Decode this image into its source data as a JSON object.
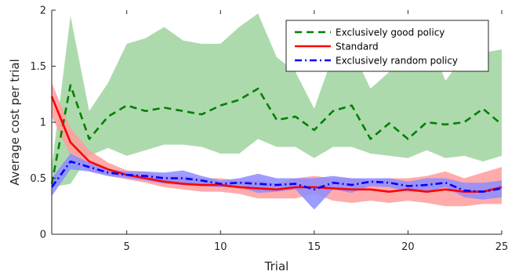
{
  "chart_data": {
    "type": "line",
    "xlabel": "Trial",
    "ylabel": "Average cost per trial",
    "xlim": [
      1,
      25
    ],
    "ylim": [
      0,
      2
    ],
    "xticks": [
      5,
      10,
      15,
      20,
      25
    ],
    "yticks": [
      0,
      0.5,
      1,
      1.5,
      2
    ],
    "ytick_labels": [
      "0",
      "0.5",
      "1",
      "1.5",
      "2"
    ],
    "grid": false,
    "legend_position": "top-right",
    "x": [
      1,
      2,
      3,
      4,
      5,
      6,
      7,
      8,
      9,
      10,
      11,
      12,
      13,
      14,
      15,
      16,
      17,
      18,
      19,
      20,
      21,
      22,
      23,
      24,
      25
    ],
    "series": [
      {
        "name": "Exclusively good policy",
        "color": "#008000",
        "band_color": "#9fd39f",
        "line_style": "dashed",
        "values": [
          0.45,
          1.33,
          0.85,
          1.05,
          1.15,
          1.1,
          1.13,
          1.1,
          1.07,
          1.15,
          1.2,
          1.3,
          1.02,
          1.05,
          0.93,
          1.1,
          1.15,
          0.85,
          0.99,
          0.85,
          1.0,
          0.98,
          1.0,
          1.12,
          0.98
        ],
        "upper": [
          0.6,
          1.95,
          1.1,
          1.35,
          1.7,
          1.75,
          1.85,
          1.73,
          1.7,
          1.7,
          1.85,
          1.97,
          1.58,
          1.45,
          1.12,
          1.6,
          1.65,
          1.3,
          1.45,
          1.65,
          1.8,
          1.37,
          1.6,
          1.62,
          1.65
        ],
        "lower": [
          0.42,
          0.45,
          0.7,
          0.77,
          0.7,
          0.75,
          0.8,
          0.8,
          0.78,
          0.72,
          0.72,
          0.85,
          0.78,
          0.78,
          0.68,
          0.78,
          0.78,
          0.72,
          0.7,
          0.68,
          0.75,
          0.68,
          0.7,
          0.65,
          0.7
        ]
      },
      {
        "name": "Standard",
        "color": "#ff0000",
        "band_color": "#ff9c9c",
        "line_style": "solid",
        "values": [
          1.23,
          0.82,
          0.65,
          0.58,
          0.53,
          0.5,
          0.47,
          0.45,
          0.44,
          0.44,
          0.42,
          0.41,
          0.4,
          0.42,
          0.42,
          0.41,
          0.4,
          0.4,
          0.38,
          0.4,
          0.38,
          0.4,
          0.38,
          0.38,
          0.42
        ],
        "upper": [
          1.35,
          0.95,
          0.75,
          0.64,
          0.57,
          0.56,
          0.52,
          0.52,
          0.5,
          0.5,
          0.48,
          0.48,
          0.45,
          0.5,
          0.52,
          0.5,
          0.5,
          0.48,
          0.5,
          0.5,
          0.52,
          0.56,
          0.5,
          0.55,
          0.6
        ],
        "lower": [
          1.05,
          0.7,
          0.56,
          0.52,
          0.49,
          0.46,
          0.42,
          0.4,
          0.38,
          0.38,
          0.36,
          0.32,
          0.32,
          0.32,
          0.36,
          0.3,
          0.28,
          0.3,
          0.28,
          0.3,
          0.28,
          0.25,
          0.25,
          0.27,
          0.27
        ]
      },
      {
        "name": "Exclusively random policy",
        "color": "#0000ff",
        "band_color": "#8c8cff",
        "line_style": "dashdot",
        "values": [
          0.42,
          0.65,
          0.6,
          0.55,
          0.53,
          0.52,
          0.5,
          0.5,
          0.48,
          0.45,
          0.46,
          0.45,
          0.44,
          0.45,
          0.4,
          0.46,
          0.44,
          0.47,
          0.46,
          0.43,
          0.44,
          0.46,
          0.39,
          0.38,
          0.41
        ],
        "upper": [
          0.5,
          0.72,
          0.64,
          0.58,
          0.56,
          0.56,
          0.55,
          0.57,
          0.52,
          0.48,
          0.5,
          0.54,
          0.5,
          0.5,
          0.5,
          0.52,
          0.5,
          0.5,
          0.5,
          0.47,
          0.5,
          0.5,
          0.46,
          0.46,
          0.48
        ],
        "lower": [
          0.34,
          0.58,
          0.56,
          0.52,
          0.5,
          0.48,
          0.45,
          0.44,
          0.43,
          0.42,
          0.42,
          0.37,
          0.38,
          0.4,
          0.22,
          0.4,
          0.37,
          0.43,
          0.42,
          0.38,
          0.38,
          0.42,
          0.33,
          0.31,
          0.33
        ]
      }
    ]
  }
}
